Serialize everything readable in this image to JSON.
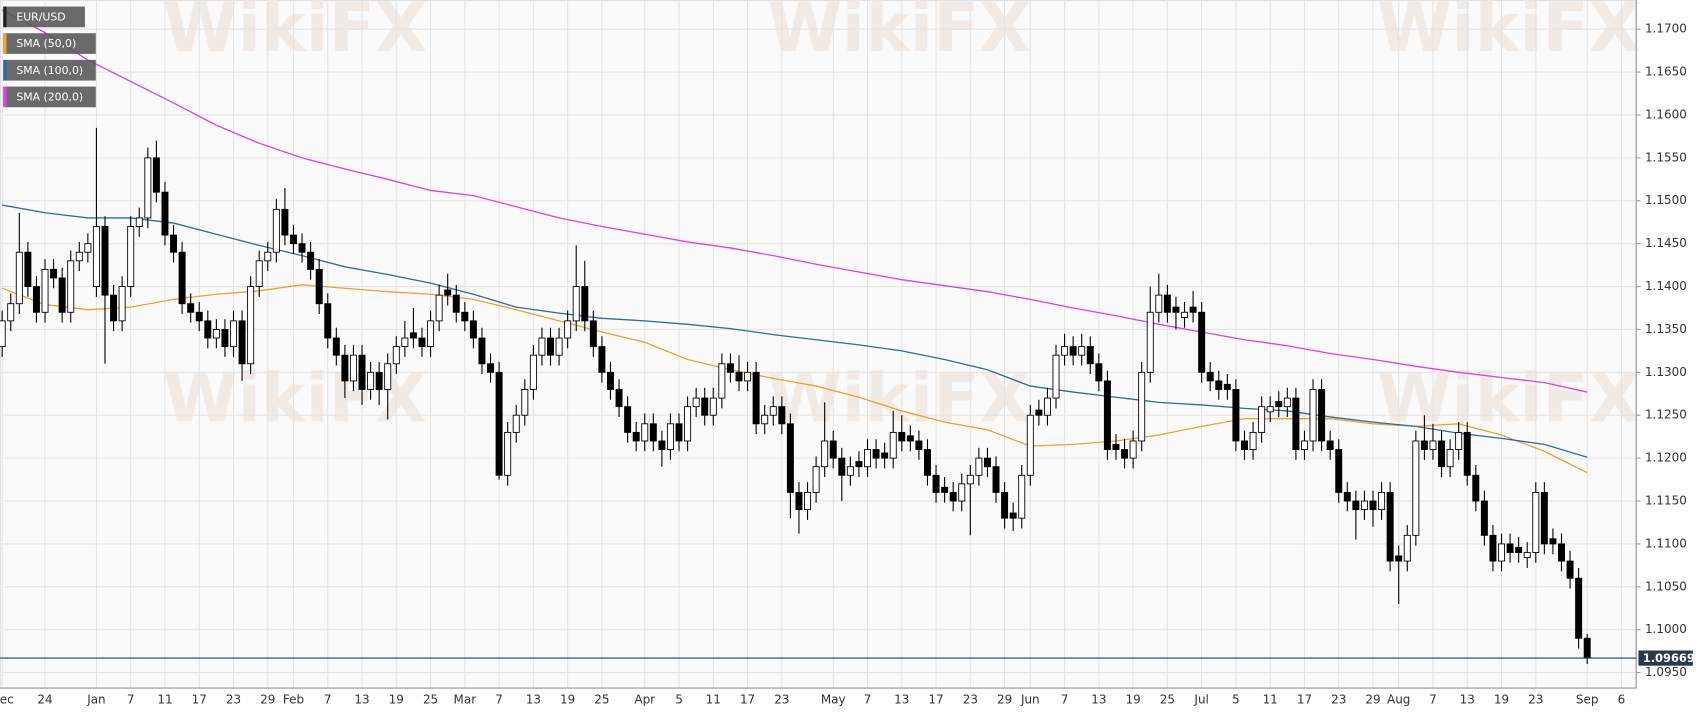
{
  "chart_data": {
    "type": "candlestick",
    "watermark": "WikiFX",
    "categories": [
      "Dec",
      null,
      null,
      null,
      null,
      "24",
      null,
      null,
      null,
      null,
      null,
      "Jan",
      null,
      null,
      null,
      "7",
      null,
      null,
      null,
      "11",
      null,
      null,
      null,
      "17",
      null,
      null,
      null,
      "23",
      null,
      null,
      null,
      "29",
      null,
      null,
      "Feb",
      null,
      null,
      null,
      "7",
      null,
      null,
      null,
      "13",
      null,
      null,
      null,
      "19",
      null,
      null,
      null,
      "25",
      null,
      null,
      null,
      "Mar",
      null,
      null,
      null,
      "7",
      null,
      null,
      null,
      "13",
      null,
      null,
      null,
      "19",
      null,
      null,
      null,
      "25",
      null,
      null,
      null,
      null,
      "Apr",
      null,
      null,
      null,
      "5",
      null,
      null,
      null,
      "11",
      null,
      null,
      null,
      "17",
      null,
      null,
      null,
      "23",
      null,
      null,
      null,
      null,
      null,
      "May",
      null,
      null,
      null,
      "7",
      null,
      null,
      null,
      "13",
      null,
      null,
      null,
      "17",
      null,
      null,
      null,
      "23",
      null,
      null,
      null,
      "29",
      null,
      null,
      "Jun",
      null,
      null,
      null,
      "7",
      null,
      null,
      null,
      "13",
      null,
      null,
      null,
      "19",
      null,
      null,
      null,
      "25",
      null,
      null,
      null,
      "Jul",
      null,
      null,
      null,
      "5",
      null,
      null,
      null,
      "11",
      null,
      null,
      null,
      "17",
      null,
      null,
      null,
      "23",
      null,
      null,
      null,
      "29",
      null,
      null,
      "Aug",
      null,
      null,
      null,
      "7",
      null,
      null,
      null,
      "13",
      null,
      null,
      null,
      "19",
      null,
      null,
      null,
      "23",
      null,
      null,
      null,
      null,
      null,
      "Sep",
      null,
      null,
      null,
      "6"
    ],
    "candles": {
      "name": "EUR/USD",
      "up_color": "#ffffff",
      "down_color": "#000000",
      "open": [
        1.133,
        1.136,
        1.138,
        1.144,
        1.14,
        1.137,
        1.142,
        1.141,
        1.137,
        1.143,
        1.144,
        1.14,
        1.147,
        1.139,
        1.136,
        1.14,
        1.147,
        1.148,
        1.155,
        1.151,
        1.146,
        1.144,
        1.138,
        1.137,
        1.136,
        1.134,
        1.135,
        1.133,
        1.136,
        1.131,
        1.14,
        1.143,
        1.144,
        1.149,
        1.146,
        1.145,
        1.144,
        1.142,
        1.138,
        1.134,
        1.132,
        1.129,
        1.132,
        1.128,
        1.13,
        1.128,
        1.131,
        1.133,
        1.1346,
        1.134,
        1.133,
        1.136,
        1.1396,
        1.139,
        1.137,
        1.136,
        1.134,
        1.131,
        1.13,
        1.118,
        1.123,
        1.125,
        1.128,
        1.132,
        1.134,
        1.132,
        1.134,
        1.136,
        1.14,
        1.136,
        1.133,
        1.13,
        1.128,
        1.126,
        1.123,
        1.122,
        1.124,
        1.122,
        1.121,
        1.124,
        1.122,
        1.126,
        1.127,
        1.125,
        1.127,
        1.131,
        1.13,
        1.129,
        1.13,
        1.124,
        1.125,
        1.126,
        1.124,
        1.116,
        1.114,
        1.116,
        1.119,
        1.122,
        1.12,
        1.118,
        1.1196,
        1.119,
        1.121,
        1.1206,
        1.12,
        1.123,
        1.1226,
        1.122,
        1.121,
        1.118,
        1.1166,
        1.116,
        1.115,
        1.117,
        1.118,
        1.12,
        1.119,
        1.116,
        1.1136,
        1.113,
        1.118,
        1.1256,
        1.125,
        1.127,
        1.132,
        1.133,
        1.132,
        1.133,
        1.131,
        1.129,
        1.1216,
        1.121,
        1.12,
        1.122,
        1.13,
        1.137,
        1.139,
        1.1376,
        1.1364,
        1.1376,
        1.137,
        1.13,
        1.129,
        1.1286,
        1.128,
        1.122,
        1.121,
        1.123,
        1.1254,
        1.1266,
        1.126,
        1.127,
        1.121,
        1.122,
        1.128,
        1.122,
        1.121,
        1.116,
        1.115,
        1.114,
        1.115,
        1.114,
        1.116,
        1.1086,
        1.108,
        1.111,
        1.122,
        1.121,
        1.122,
        1.119,
        1.121,
        1.123,
        1.118,
        1.115,
        1.111,
        1.108,
        1.11,
        1.1096,
        1.1084,
        1.109,
        1.116,
        1.1106,
        1.11,
        1.108,
        1.106,
        1.099,
        null,
        null,
        null,
        null
      ],
      "high": [
        1.1372,
        1.1392,
        1.1486,
        1.1452,
        1.1412,
        1.1432,
        1.1432,
        1.1422,
        1.1442,
        1.1452,
        1.1462,
        1.1585,
        1.1482,
        1.1402,
        1.1412,
        1.1482,
        1.1492,
        1.1562,
        1.157,
        1.1522,
        1.1472,
        1.1452,
        1.1392,
        1.1382,
        1.1372,
        1.1362,
        1.1362,
        1.1372,
        1.1372,
        1.1412,
        1.1442,
        1.1452,
        1.1502,
        1.1515,
        1.1472,
        1.1462,
        1.1452,
        1.1432,
        1.1392,
        1.1352,
        1.1332,
        1.1332,
        1.1332,
        1.1312,
        1.1312,
        1.1322,
        1.1342,
        1.136,
        1.1375,
        1.1352,
        1.1372,
        1.1402,
        1.1415,
        1.1402,
        1.1382,
        1.1372,
        1.1352,
        1.1322,
        1.1312,
        1.1242,
        1.1262,
        1.1292,
        1.1332,
        1.1352,
        1.1352,
        1.1352,
        1.1372,
        1.1448,
        1.143,
        1.1372,
        1.1342,
        1.1312,
        1.1292,
        1.1272,
        1.1242,
        1.1252,
        1.1252,
        1.1232,
        1.1252,
        1.1252,
        1.1272,
        1.1282,
        1.1282,
        1.1282,
        1.1322,
        1.1322,
        1.132,
        1.1312,
        1.1312,
        1.1262,
        1.1272,
        1.1272,
        1.1252,
        1.1172,
        1.1172,
        1.1202,
        1.1265,
        1.1232,
        1.1212,
        1.1202,
        1.1208,
        1.1222,
        1.1222,
        1.1218,
        1.1255,
        1.125,
        1.1238,
        1.1232,
        1.1222,
        1.1192,
        1.1178,
        1.1172,
        1.1182,
        1.1192,
        1.1212,
        1.1212,
        1.1202,
        1.1172,
        1.1148,
        1.1192,
        1.1262,
        1.1268,
        1.1282,
        1.1332,
        1.1345,
        1.1342,
        1.1345,
        1.1342,
        1.1322,
        1.1302,
        1.1228,
        1.1222,
        1.1232,
        1.1312,
        1.14,
        1.1415,
        1.1402,
        1.1388,
        1.1382,
        1.1395,
        1.1382,
        1.1312,
        1.1302,
        1.1298,
        1.1292,
        1.1232,
        1.1242,
        1.1272,
        1.1272,
        1.1278,
        1.1282,
        1.1282,
        1.1232,
        1.1292,
        1.1292,
        1.1232,
        1.1222,
        1.1172,
        1.1162,
        1.1162,
        1.1162,
        1.1172,
        1.1172,
        1.1098,
        1.1122,
        1.1232,
        1.125,
        1.124,
        1.1232,
        1.1222,
        1.1242,
        1.1242,
        1.1192,
        1.1162,
        1.1122,
        1.1112,
        1.1112,
        1.1108,
        1.1102,
        1.1172,
        1.1172,
        1.1118,
        1.1112,
        1.1092,
        1.1072,
        1.0995,
        null,
        null,
        null,
        null
      ],
      "low": [
        1.1318,
        1.1348,
        1.1368,
        1.1388,
        1.1358,
        1.1358,
        1.1398,
        1.1358,
        1.1358,
        1.1418,
        1.1428,
        1.1388,
        1.131,
        1.1348,
        1.1348,
        1.1388,
        1.1458,
        1.1468,
        1.1498,
        1.1448,
        1.1428,
        1.1368,
        1.1358,
        1.1348,
        1.1328,
        1.1328,
        1.1318,
        1.1318,
        1.129,
        1.1298,
        1.1388,
        1.1418,
        1.1428,
        1.1448,
        1.1438,
        1.1428,
        1.1408,
        1.1368,
        1.1328,
        1.1308,
        1.127,
        1.1278,
        1.1262,
        1.1268,
        1.1262,
        1.1245,
        1.1298,
        1.1318,
        1.1328,
        1.1318,
        1.1318,
        1.1348,
        1.1378,
        1.1358,
        1.1348,
        1.1328,
        1.1298,
        1.1288,
        1.1175,
        1.1168,
        1.1218,
        1.1238,
        1.1268,
        1.1308,
        1.1308,
        1.1308,
        1.1328,
        1.1348,
        1.1348,
        1.1318,
        1.1288,
        1.1268,
        1.1248,
        1.1218,
        1.1208,
        1.1208,
        1.1208,
        1.119,
        1.1198,
        1.1208,
        1.1208,
        1.1248,
        1.1238,
        1.1238,
        1.1258,
        1.1288,
        1.1278,
        1.1278,
        1.1228,
        1.1228,
        1.1238,
        1.1228,
        1.113,
        1.1112,
        1.1128,
        1.1148,
        1.1178,
        1.1188,
        1.115,
        1.1168,
        1.1178,
        1.1178,
        1.1188,
        1.1188,
        1.1188,
        1.1208,
        1.1208,
        1.1198,
        1.1168,
        1.1148,
        1.1148,
        1.1138,
        1.1138,
        1.111,
        1.1168,
        1.1178,
        1.1148,
        1.1118,
        1.1115,
        1.1118,
        1.1168,
        1.1238,
        1.1238,
        1.1258,
        1.1308,
        1.1308,
        1.1308,
        1.1298,
        1.1278,
        1.1198,
        1.1198,
        1.1188,
        1.1188,
        1.1208,
        1.1288,
        1.1358,
        1.1358,
        1.135,
        1.1352,
        1.1358,
        1.1288,
        1.1278,
        1.1268,
        1.1268,
        1.1208,
        1.1198,
        1.1198,
        1.1218,
        1.1242,
        1.1248,
        1.1248,
        1.1198,
        1.1198,
        1.1208,
        1.1208,
        1.1198,
        1.1148,
        1.1138,
        1.1105,
        1.1128,
        1.112,
        1.1128,
        1.1068,
        1.103,
        1.1068,
        1.1098,
        1.1198,
        1.1198,
        1.1178,
        1.1178,
        1.1198,
        1.1168,
        1.1138,
        1.1098,
        1.1068,
        1.1068,
        1.1078,
        1.1078,
        1.1072,
        1.1078,
        1.1088,
        1.1088,
        1.1068,
        1.1048,
        1.0978,
        1.096,
        null,
        null,
        null,
        null
      ],
      "close": [
        1.136,
        1.138,
        1.144,
        1.14,
        1.137,
        1.142,
        1.141,
        1.137,
        1.143,
        1.144,
        1.145,
        1.147,
        1.139,
        1.136,
        1.14,
        1.147,
        1.148,
        1.155,
        1.151,
        1.146,
        1.144,
        1.138,
        1.137,
        1.136,
        1.134,
        1.135,
        1.133,
        1.136,
        1.131,
        1.14,
        1.143,
        1.144,
        1.149,
        1.146,
        1.145,
        1.144,
        1.142,
        1.138,
        1.134,
        1.132,
        1.129,
        1.132,
        1.128,
        1.13,
        1.128,
        1.131,
        1.133,
        1.134,
        1.134,
        1.133,
        1.136,
        1.139,
        1.139,
        1.137,
        1.136,
        1.134,
        1.131,
        1.13,
        1.118,
        1.123,
        1.125,
        1.128,
        1.132,
        1.134,
        1.132,
        1.134,
        1.136,
        1.14,
        1.136,
        1.133,
        1.13,
        1.128,
        1.126,
        1.123,
        1.122,
        1.124,
        1.122,
        1.121,
        1.124,
        1.122,
        1.126,
        1.127,
        1.125,
        1.127,
        1.131,
        1.13,
        1.129,
        1.13,
        1.124,
        1.125,
        1.126,
        1.124,
        1.116,
        1.114,
        1.116,
        1.119,
        1.122,
        1.12,
        1.118,
        1.119,
        1.119,
        1.121,
        1.12,
        1.12,
        1.123,
        1.122,
        1.122,
        1.121,
        1.118,
        1.116,
        1.116,
        1.115,
        1.117,
        1.118,
        1.12,
        1.119,
        1.116,
        1.113,
        1.113,
        1.118,
        1.125,
        1.125,
        1.127,
        1.132,
        1.133,
        1.132,
        1.133,
        1.131,
        1.129,
        1.121,
        1.121,
        1.12,
        1.122,
        1.13,
        1.137,
        1.139,
        1.137,
        1.137,
        1.137,
        1.137,
        1.13,
        1.129,
        1.128,
        1.128,
        1.122,
        1.121,
        1.123,
        1.126,
        1.126,
        1.126,
        1.127,
        1.121,
        1.122,
        1.128,
        1.122,
        1.121,
        1.116,
        1.115,
        1.114,
        1.115,
        1.114,
        1.116,
        1.108,
        1.108,
        1.111,
        1.122,
        1.121,
        1.122,
        1.119,
        1.121,
        1.123,
        1.118,
        1.115,
        1.111,
        1.108,
        1.11,
        1.109,
        1.109,
        1.109,
        1.116,
        1.11,
        1.11,
        1.108,
        1.106,
        1.099,
        1.0967,
        null,
        null,
        null,
        null
      ]
    },
    "series": [
      {
        "name": "SMA (50,0)",
        "color": "#f0a030",
        "x": [
          0,
          5,
          10,
          15,
          20,
          25,
          30,
          35,
          40,
          45,
          50,
          55,
          60,
          65,
          70,
          75,
          80,
          85,
          90,
          95,
          100,
          105,
          110,
          115,
          120,
          125,
          130,
          135,
          140,
          145,
          150,
          155,
          160,
          165,
          170,
          175,
          180,
          185
        ],
        "values": [
          1.1398,
          1.1379,
          1.1373,
          1.1376,
          1.1385,
          1.1391,
          1.1395,
          1.1402,
          1.1398,
          1.1394,
          1.1391,
          1.1385,
          1.1373,
          1.136,
          1.1347,
          1.1335,
          1.1315,
          1.1303,
          1.1293,
          1.1284,
          1.1271,
          1.1255,
          1.1242,
          1.1233,
          1.1214,
          1.1216,
          1.122,
          1.1227,
          1.1237,
          1.1246,
          1.1246,
          1.1246,
          1.124,
          1.1237,
          1.124,
          1.1227,
          1.1208,
          1.1183
        ]
      },
      {
        "name": "SMA (100,0)",
        "color": "#2f6aa8",
        "x": [
          0,
          5,
          10,
          15,
          20,
          25,
          30,
          35,
          40,
          45,
          50,
          55,
          60,
          65,
          70,
          75,
          80,
          85,
          90,
          95,
          100,
          105,
          110,
          115,
          120,
          125,
          130,
          135,
          140,
          145,
          150,
          155,
          160,
          165,
          170,
          175,
          180,
          185
        ],
        "values": [
          1.1495,
          1.1486,
          1.148,
          1.148,
          1.1474,
          1.1461,
          1.1448,
          1.1436,
          1.1423,
          1.1414,
          1.1404,
          1.1391,
          1.1376,
          1.1369,
          1.1363,
          1.136,
          1.1356,
          1.1351,
          1.1344,
          1.1338,
          1.1332,
          1.1325,
          1.1315,
          1.1303,
          1.1284,
          1.1277,
          1.1271,
          1.1265,
          1.1262,
          1.1258,
          1.1255,
          1.1248,
          1.1242,
          1.1237,
          1.1229,
          1.1223,
          1.1216,
          1.1201
        ]
      },
      {
        "name": "SMA (200,0)",
        "color": "#e040e0",
        "x": [
          0,
          5,
          10,
          15,
          20,
          25,
          30,
          35,
          40,
          45,
          50,
          55,
          60,
          65,
          70,
          75,
          80,
          85,
          90,
          95,
          100,
          105,
          110,
          115,
          120,
          125,
          130,
          135,
          140,
          145,
          150,
          155,
          160,
          165,
          170,
          175,
          180,
          185
        ],
        "values": [
          1.1722,
          1.1696,
          1.1664,
          1.1639,
          1.1614,
          1.1588,
          1.1567,
          1.155,
          1.1537,
          1.1525,
          1.1512,
          1.1506,
          1.1493,
          1.148,
          1.147,
          1.1461,
          1.1452,
          1.1445,
          1.1436,
          1.1426,
          1.1417,
          1.1408,
          1.1401,
          1.1394,
          1.1385,
          1.1375,
          1.1366,
          1.1356,
          1.1347,
          1.1338,
          1.1331,
          1.1322,
          1.1315,
          1.1307,
          1.13,
          1.1294,
          1.1288,
          1.1277
        ]
      }
    ],
    "ylim": [
      1.0932,
      1.1734
    ],
    "yticks": [
      {
        "value": 1.17,
        "label": "1.1700"
      },
      {
        "value": 1.165,
        "label": "1.1650"
      },
      {
        "value": 1.16,
        "label": "1.1600"
      },
      {
        "value": 1.155,
        "label": "1.1550"
      },
      {
        "value": 1.15,
        "label": "1.1500"
      },
      {
        "value": 1.145,
        "label": "1.1450"
      },
      {
        "value": 1.14,
        "label": "1.1400"
      },
      {
        "value": 1.135,
        "label": "1.1350"
      },
      {
        "value": 1.13,
        "label": "1.1300"
      },
      {
        "value": 1.125,
        "label": "1.1250"
      },
      {
        "value": 1.12,
        "label": "1.1200"
      },
      {
        "value": 1.115,
        "label": "1.1150"
      },
      {
        "value": 1.11,
        "label": "1.1100"
      },
      {
        "value": 1.105,
        "label": "1.1050"
      },
      {
        "value": 1.1,
        "label": "1.1000"
      },
      {
        "value": 1.095,
        "label": "1.0950"
      }
    ],
    "last_price": 1.09669,
    "grid": true
  }
}
